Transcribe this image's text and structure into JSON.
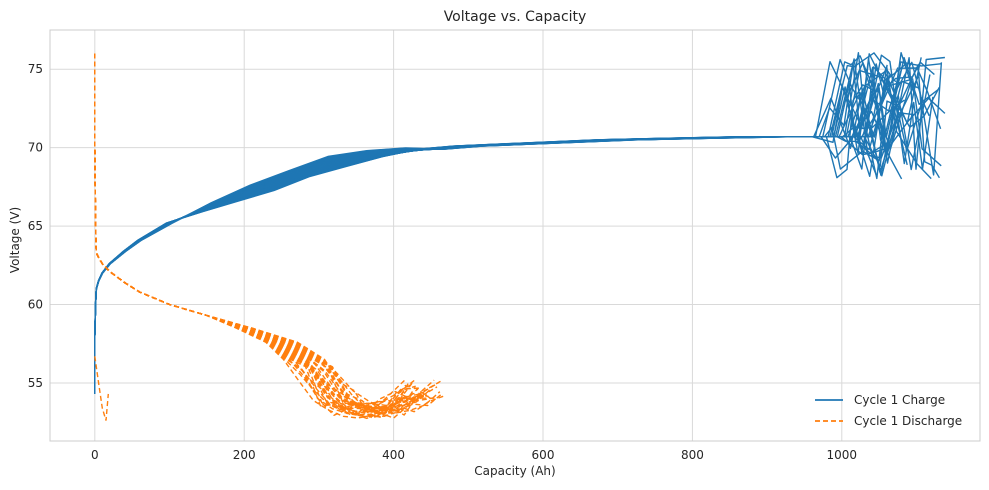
{
  "chart_data": {
    "type": "line",
    "title": "Voltage vs. Capacity",
    "xlabel": "Capacity (Ah)",
    "ylabel": "Voltage (V)",
    "xlim": [
      -60,
      1185
    ],
    "ylim": [
      51.3,
      77.5
    ],
    "xticks": [
      0,
      200,
      400,
      600,
      800,
      1000
    ],
    "yticks": [
      55,
      60,
      65,
      70,
      75
    ],
    "grid": true,
    "legend_position": "lower-right",
    "series": [
      {
        "name": "Cycle 1 Charge",
        "color": "#1f77b4",
        "style": "solid",
        "x": [
          0,
          0,
          1,
          2,
          5,
          10,
          20,
          40,
          60,
          100,
          150,
          200,
          250,
          300,
          350,
          400,
          450,
          500,
          600,
          700,
          800,
          900,
          960,
          1000
        ],
        "y": [
          54.3,
          58.0,
          60.0,
          61.0,
          61.5,
          62.0,
          62.6,
          63.4,
          64.1,
          65.2,
          66.2,
          67.1,
          67.9,
          68.8,
          69.3,
          69.7,
          69.9,
          70.1,
          70.3,
          70.5,
          70.6,
          70.7,
          70.7,
          70.7
        ]
      },
      {
        "name": "Cycle 1 Discharge",
        "color": "#ff7f0e",
        "style": "dashed",
        "x": [
          0,
          0,
          1,
          2,
          5,
          10,
          20,
          40,
          60,
          100,
          150,
          200,
          250,
          280,
          300,
          320,
          340,
          360,
          380,
          400,
          420,
          440
        ],
        "y": [
          76.0,
          70.0,
          65.0,
          63.3,
          63.0,
          62.6,
          62.1,
          61.4,
          60.8,
          60.0,
          59.3,
          58.5,
          57.6,
          56.5,
          55.0,
          53.5,
          52.7,
          52.6,
          52.7,
          52.9,
          53.5,
          54.0
        ]
      }
    ]
  }
}
